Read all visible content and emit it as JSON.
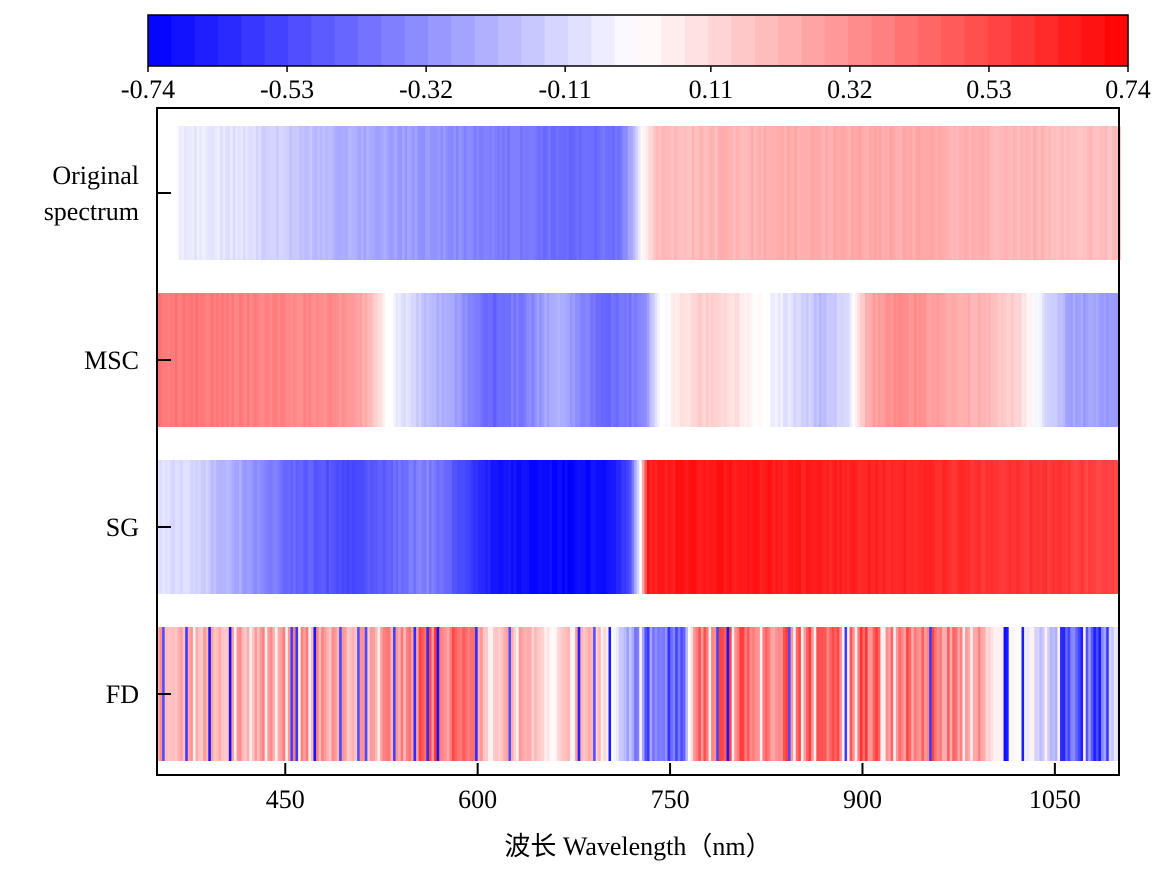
{
  "chart_data": {
    "type": "heatmap",
    "title": "",
    "xlabel": "波长  Wavelength（nm）",
    "ylabel": "",
    "xlim": [
      350,
      1100
    ],
    "x_ticks": [
      450,
      600,
      750,
      900,
      1050
    ],
    "x_tick_labels": [
      "450",
      "600",
      "750",
      "900",
      "1050"
    ],
    "colorbar": {
      "min": -0.74,
      "max": 0.74,
      "ticks": [
        -0.74,
        -0.53,
        -0.32,
        -0.11,
        0.11,
        0.32,
        0.53,
        0.74
      ],
      "tick_labels": [
        "-0.74",
        "-0.53",
        "-0.32",
        "-0.11",
        "0.11",
        "0.32",
        "0.53",
        "0.74"
      ],
      "low_color": "#0000ff",
      "mid_color": "#ffffff",
      "high_color": "#ff0000",
      "placement": "top"
    },
    "rows": [
      {
        "label_lines": [
          "Original",
          "spectrum"
        ],
        "x_start": 365,
        "profile": [
          [
            365,
            0.0
          ],
          [
            370,
            -0.05
          ],
          [
            420,
            -0.09
          ],
          [
            450,
            -0.15
          ],
          [
            500,
            -0.24
          ],
          [
            560,
            -0.3
          ],
          [
            600,
            -0.36
          ],
          [
            640,
            -0.4
          ],
          [
            680,
            -0.44
          ],
          [
            710,
            -0.4
          ],
          [
            722,
            -0.22
          ],
          [
            728,
            0.02
          ],
          [
            740,
            0.18
          ],
          [
            800,
            0.22
          ],
          [
            850,
            0.24
          ],
          [
            900,
            0.25
          ],
          [
            950,
            0.24
          ],
          [
            1000,
            0.22
          ],
          [
            1040,
            0.21
          ],
          [
            1100,
            0.18
          ]
        ]
      },
      {
        "label_lines": [
          "MSC"
        ],
        "x_start": 350,
        "profile": [
          [
            350,
            0.4
          ],
          [
            400,
            0.38
          ],
          [
            450,
            0.36
          ],
          [
            500,
            0.32
          ],
          [
            515,
            0.22
          ],
          [
            530,
            0.0
          ],
          [
            545,
            -0.1
          ],
          [
            560,
            -0.18
          ],
          [
            590,
            -0.32
          ],
          [
            610,
            -0.46
          ],
          [
            640,
            -0.36
          ],
          [
            660,
            -0.22
          ],
          [
            680,
            -0.34
          ],
          [
            700,
            -0.44
          ],
          [
            730,
            -0.36
          ],
          [
            740,
            -0.05
          ],
          [
            750,
            0.02
          ],
          [
            770,
            0.14
          ],
          [
            800,
            0.1
          ],
          [
            830,
            -0.04
          ],
          [
            850,
            -0.12
          ],
          [
            870,
            -0.2
          ],
          [
            890,
            -0.08
          ],
          [
            905,
            0.26
          ],
          [
            930,
            0.34
          ],
          [
            960,
            0.28
          ],
          [
            990,
            0.22
          ],
          [
            1020,
            0.14
          ],
          [
            1038,
            -0.05
          ],
          [
            1060,
            -0.26
          ],
          [
            1100,
            -0.3
          ]
        ]
      },
      {
        "label_lines": [
          "SG"
        ],
        "x_start": 350,
        "profile": [
          [
            350,
            -0.08
          ],
          [
            380,
            -0.12
          ],
          [
            420,
            -0.28
          ],
          [
            450,
            -0.42
          ],
          [
            500,
            -0.54
          ],
          [
            560,
            -0.36
          ],
          [
            610,
            -0.66
          ],
          [
            660,
            -0.72
          ],
          [
            700,
            -0.7
          ],
          [
            718,
            -0.56
          ],
          [
            724,
            -0.2
          ],
          [
            728,
            0.1
          ],
          [
            732,
            0.66
          ],
          [
            760,
            0.68
          ],
          [
            850,
            0.66
          ],
          [
            950,
            0.62
          ],
          [
            1050,
            0.58
          ],
          [
            1100,
            0.54
          ]
        ]
      },
      {
        "label_lines": [
          "FD"
        ],
        "x_start": 350,
        "noise_seed": 7,
        "profile": [
          [
            350,
            0.26
          ],
          [
            400,
            0.22
          ],
          [
            450,
            0.3
          ],
          [
            500,
            0.25
          ],
          [
            540,
            0.3
          ],
          [
            560,
            0.48
          ],
          [
            590,
            0.34
          ],
          [
            620,
            0.2
          ],
          [
            640,
            0.24
          ],
          [
            660,
            0.0
          ],
          [
            670,
            0.28
          ],
          [
            690,
            0.22
          ],
          [
            700,
            0.1
          ],
          [
            720,
            -0.3
          ],
          [
            740,
            -0.46
          ],
          [
            760,
            -0.4
          ],
          [
            770,
            0.4
          ],
          [
            830,
            0.42
          ],
          [
            870,
            0.4
          ],
          [
            900,
            0.44
          ],
          [
            950,
            0.4
          ],
          [
            990,
            0.3
          ],
          [
            1000,
            0.08
          ],
          [
            1020,
            0.02
          ],
          [
            1040,
            -0.16
          ],
          [
            1060,
            -0.42
          ],
          [
            1080,
            -0.5
          ],
          [
            1090,
            -0.2
          ],
          [
            1100,
            -0.05
          ]
        ]
      }
    ]
  }
}
